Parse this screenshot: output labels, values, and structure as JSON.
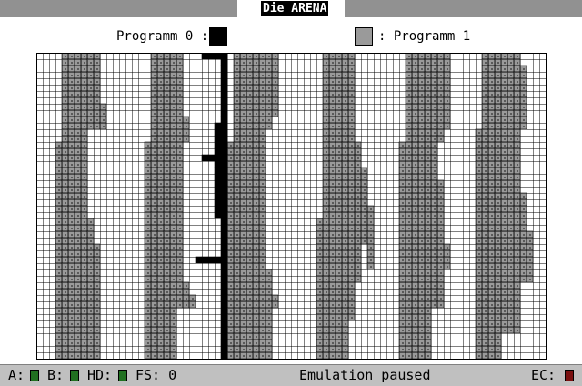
{
  "window": {
    "title": "Die ARENA"
  },
  "legend": {
    "program0_label": "Programm 0 :",
    "program1_label": ": Programm 1"
  },
  "statusbar": {
    "drive_a_label": "A:",
    "drive_b_label": "B:",
    "hd_label": "HD:",
    "fs_label": "FS: 0",
    "emulation_status": "Emulation paused",
    "ec_label": "EC:",
    "drive_a_color": "#207020",
    "drive_b_color": "#207020",
    "hd_color": "#207020",
    "ec_color": "#7a1010"
  },
  "colors": {
    "program0": "#000000",
    "program1": "#9a9a9a",
    "grid": "#000000",
    "background": "#ffffff",
    "statusbar_bg": "#c0c0c0"
  }
}
